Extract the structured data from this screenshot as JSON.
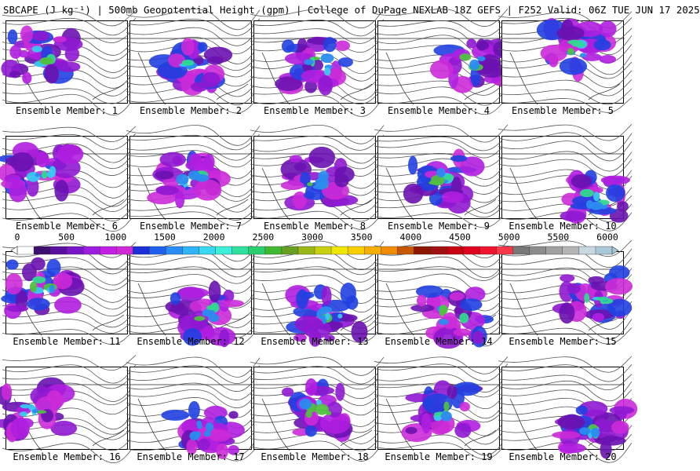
{
  "title": "SBCAPE (J kg⁻¹) | 500mb Geopotential Height (gpm) | College of DuPage NEXLAB 18Z GEFS | F252 Valid: 06Z TUE JUN 17 2025",
  "label_prefix": "Ensemble Member:",
  "members": [
    {
      "n": "1",
      "blob": "nw"
    },
    {
      "n": "2",
      "blob": "c"
    },
    {
      "n": "3",
      "blob": "c"
    },
    {
      "n": "4",
      "blob": "e"
    },
    {
      "n": "5",
      "blob": "ne"
    },
    {
      "n": "6",
      "blob": "nw"
    },
    {
      "n": "7",
      "blob": "c"
    },
    {
      "n": "8",
      "blob": "c"
    },
    {
      "n": "9",
      "blob": "c"
    },
    {
      "n": "10",
      "blob": "se"
    },
    {
      "n": "11",
      "blob": "nw"
    },
    {
      "n": "12",
      "blob": "s"
    },
    {
      "n": "13",
      "blob": "s"
    },
    {
      "n": "14",
      "blob": "s"
    },
    {
      "n": "15",
      "blob": "e"
    },
    {
      "n": "16",
      "blob": "w"
    },
    {
      "n": "17",
      "blob": "s"
    },
    {
      "n": "18",
      "blob": "c"
    },
    {
      "n": "19",
      "blob": "c"
    },
    {
      "n": "20",
      "blob": "se"
    }
  ],
  "colorbar": {
    "ticks": [
      "0",
      "500",
      "1000",
      "1500",
      "2000",
      "2500",
      "3000",
      "3500",
      "4000",
      "4500",
      "5000",
      "5500",
      "6000"
    ],
    "colors": [
      "#ffffff",
      "#3d0f6e",
      "#5b0fa0",
      "#7a16c8",
      "#9d1ee0",
      "#c21ee6",
      "#d02ad8",
      "#1d2fd8",
      "#2060f0",
      "#2a8cf5",
      "#30b4f5",
      "#38d8f0",
      "#3af0d8",
      "#30e0a0",
      "#2ad070",
      "#40b830",
      "#68a020",
      "#9ab818",
      "#c8d010",
      "#f0e800",
      "#f8d000",
      "#f8b000",
      "#f08c00",
      "#c85800",
      "#8c1800",
      "#a01010",
      "#c80010",
      "#e00020",
      "#f01430",
      "#f83848",
      "#787878",
      "#8c8c8c",
      "#a0a0a0",
      "#b4b4b4",
      "#c8d8e0",
      "#a8c8d8"
    ]
  }
}
